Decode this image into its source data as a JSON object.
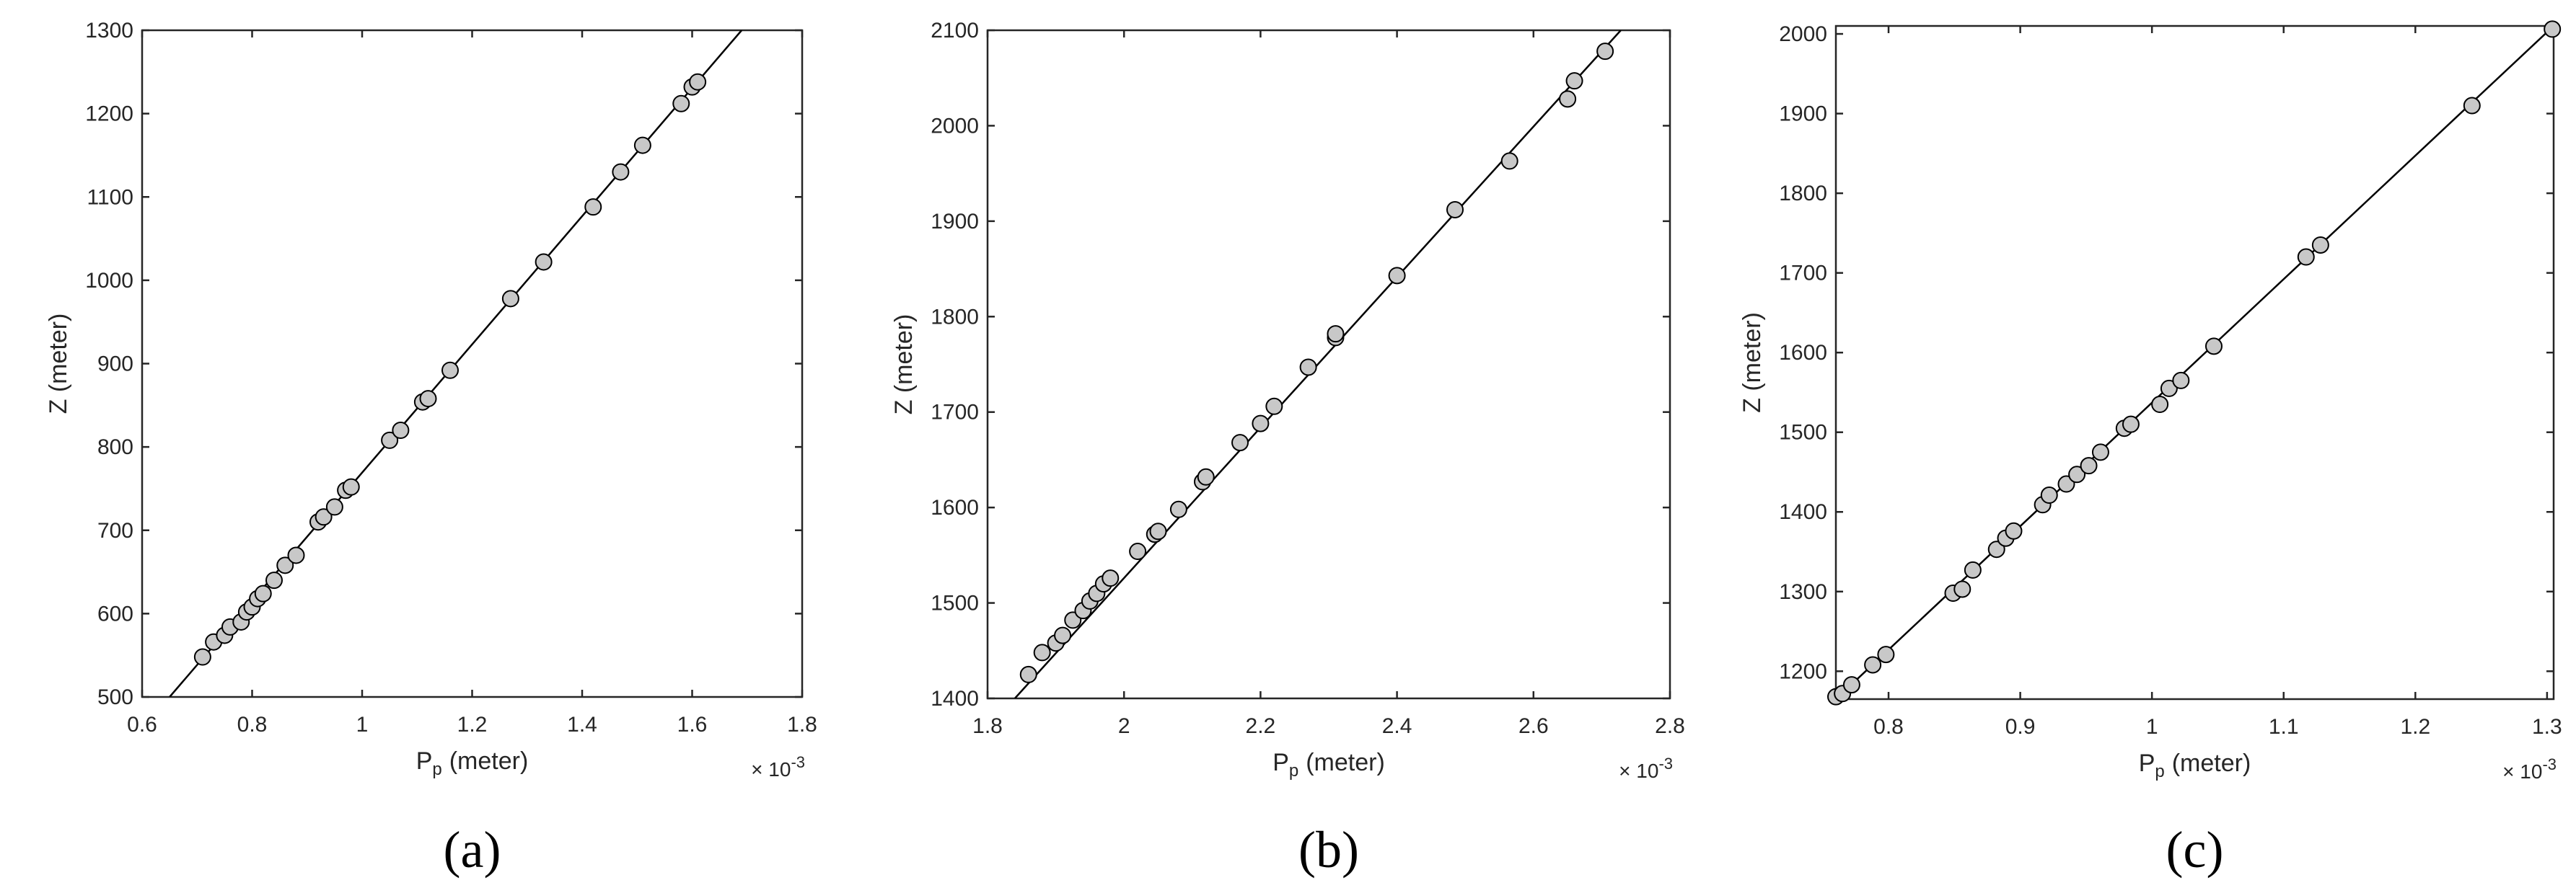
{
  "chart_data": [
    {
      "type": "scatter",
      "panel_label": "(a)",
      "xlabel_main": "P",
      "xlabel_sub": "p",
      "xlabel_unit": "(meter)",
      "ylabel": "Z (meter)",
      "x_multiplier_base": "× 10",
      "x_multiplier_exp": "-3",
      "xlim": [
        0.6,
        1.8
      ],
      "ylim": [
        500,
        1300
      ],
      "xticks": [
        0.6,
        0.8,
        1,
        1.2,
        1.4,
        1.6,
        1.8
      ],
      "xtick_labels": [
        "0.6",
        "0.8",
        "1",
        "1.2",
        "1.4",
        "1.6",
        "1.8"
      ],
      "yticks": [
        500,
        600,
        700,
        800,
        900,
        1000,
        1100,
        1200,
        1300
      ],
      "ytick_labels": [
        "500",
        "600",
        "700",
        "800",
        "900",
        "1000",
        "1100",
        "1200",
        "1300"
      ],
      "line": {
        "x": [
          0.65,
          1.69
        ],
        "y": [
          500,
          1300
        ]
      },
      "points": {
        "x": [
          0.71,
          0.73,
          0.75,
          0.76,
          0.78,
          0.79,
          0.8,
          0.81,
          0.82,
          0.84,
          0.86,
          0.88,
          0.92,
          0.93,
          0.95,
          0.97,
          0.98,
          1.05,
          1.07,
          1.11,
          1.12,
          1.16,
          1.27,
          1.33,
          1.42,
          1.47,
          1.51,
          1.58,
          1.6,
          1.61
        ],
        "y": [
          548,
          566,
          574,
          584,
          590,
          602,
          608,
          618,
          624,
          640,
          658,
          670,
          710,
          716,
          728,
          748,
          752,
          808,
          820,
          854,
          858,
          892,
          978,
          1022,
          1088,
          1130,
          1162,
          1212,
          1232,
          1238
        ]
      },
      "grid": false
    },
    {
      "type": "scatter",
      "panel_label": "(b)",
      "xlabel_main": "P",
      "xlabel_sub": "p",
      "xlabel_unit": "(meter)",
      "ylabel": "Z (meter)",
      "x_multiplier_base": "× 10",
      "x_multiplier_exp": "-3",
      "xlim": [
        1.8,
        2.8
      ],
      "ylim": [
        1400,
        2100
      ],
      "xticks": [
        1.8,
        2,
        2.2,
        2.4,
        2.6,
        2.8
      ],
      "xtick_labels": [
        "1.8",
        "2",
        "2.2",
        "2.4",
        "2.6",
        "2.8"
      ],
      "yticks": [
        1400,
        1500,
        1600,
        1700,
        1800,
        1900,
        2000,
        2100
      ],
      "ytick_labels": [
        "1400",
        "1500",
        "1600",
        "1700",
        "1800",
        "1900",
        "2000",
        "2100"
      ],
      "line": {
        "x": [
          1.84,
          2.728
        ],
        "y": [
          1400,
          2100
        ]
      },
      "points": {
        "x": [
          1.86,
          1.88,
          1.9,
          1.91,
          1.925,
          1.94,
          1.95,
          1.96,
          1.97,
          1.98,
          2.02,
          2.045,
          2.05,
          2.08,
          2.115,
          2.12,
          2.17,
          2.2,
          2.22,
          2.27,
          2.31,
          2.31,
          2.4,
          2.485,
          2.565,
          2.65,
          2.66,
          2.705
        ],
        "y": [
          1425,
          1448,
          1458,
          1466,
          1482,
          1492,
          1502,
          1510,
          1520,
          1526,
          1554,
          1572,
          1575,
          1598,
          1627,
          1632,
          1668,
          1688,
          1706,
          1747,
          1778,
          1782,
          1843,
          1912,
          1963,
          2028,
          2047,
          2078
        ]
      },
      "grid": false
    },
    {
      "type": "scatter",
      "panel_label": "(c)",
      "xlabel_main": "P",
      "xlabel_sub": "p",
      "xlabel_unit": "(meter)",
      "ylabel": "Z (meter)",
      "x_multiplier_base": "× 10",
      "x_multiplier_exp": "-3",
      "xlim": [
        0.76,
        1.305
      ],
      "ylim": [
        1165,
        2010
      ],
      "xticks": [
        0.8,
        0.9,
        1,
        1.1,
        1.2,
        1.3
      ],
      "xtick_labels": [
        "0.8",
        "0.9",
        "1",
        "1.1",
        "1.2",
        "1.3"
      ],
      "yticks": [
        1200,
        1300,
        1400,
        1500,
        1600,
        1700,
        1800,
        1900,
        2000
      ],
      "ytick_labels": [
        "1200",
        "1300",
        "1400",
        "1500",
        "1600",
        "1700",
        "1800",
        "1900",
        "2000"
      ],
      "line": {
        "x": [
          0.76,
          1.305
        ],
        "y": [
          1165,
          2010
        ]
      },
      "points": {
        "x": [
          0.76,
          0.765,
          0.772,
          0.788,
          0.798,
          0.849,
          0.856,
          0.864,
          0.882,
          0.889,
          0.895,
          0.917,
          0.922,
          0.935,
          0.943,
          0.952,
          0.961,
          0.979,
          0.984,
          1.006,
          1.013,
          1.022,
          1.047,
          1.117,
          1.128,
          1.243,
          1.304
        ],
        "y": [
          1168,
          1172,
          1183,
          1208,
          1221,
          1298,
          1303,
          1327,
          1353,
          1367,
          1376,
          1409,
          1421,
          1435,
          1447,
          1458,
          1475,
          1505,
          1510,
          1535,
          1555,
          1565,
          1608,
          1720,
          1735,
          1910,
          2006
        ]
      },
      "grid": false
    }
  ]
}
